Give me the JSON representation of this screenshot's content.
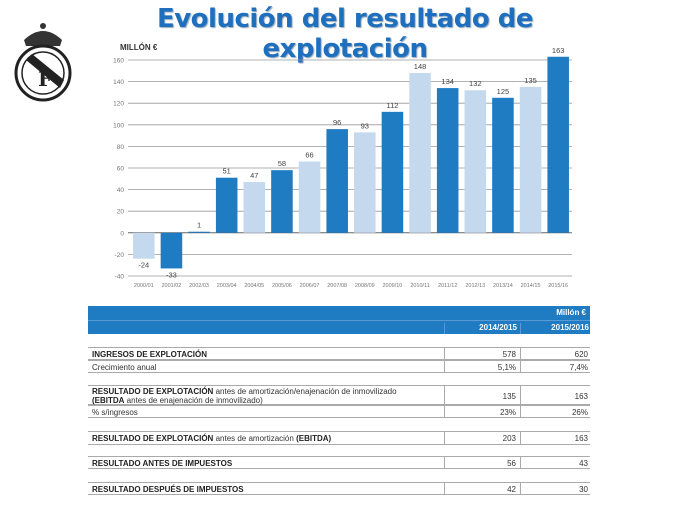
{
  "title": "Evolución del resultado de explotación",
  "logo": {
    "icon": "real-madrid-crest"
  },
  "colors": {
    "dark_bar": "#1f7bc2",
    "light_bar": "#c5d9ee",
    "header": "#1f7bc2",
    "title": "#1f6fbf"
  },
  "chart_data": {
    "type": "bar",
    "unit_label": "MILLÓN €",
    "categories": [
      "2000/01",
      "2001/02",
      "2002/03",
      "2003/04",
      "2004/05",
      "2005/06",
      "2006/07",
      "2007/08",
      "2008/09",
      "2009/10",
      "2010/11",
      "2011/12",
      "2012/13",
      "2013/14",
      "2014/15",
      "2015/16"
    ],
    "values": [
      -24,
      -33,
      1,
      51,
      47,
      58,
      66,
      96,
      93,
      112,
      148,
      134,
      132,
      125,
      135,
      163
    ],
    "bar_shades": [
      "light",
      "dark",
      "dark",
      "dark",
      "light",
      "dark",
      "light",
      "dark",
      "light",
      "dark",
      "light",
      "dark",
      "light",
      "dark",
      "light",
      "dark"
    ],
    "ylim": [
      -40,
      160
    ],
    "yticks": [
      -40,
      -20,
      0,
      20,
      40,
      60,
      80,
      100,
      120,
      140,
      160
    ],
    "grid": true
  },
  "table": {
    "unit": "Millón €",
    "columns": [
      "2014/2015",
      "2015/2016"
    ],
    "rows": [
      {
        "bold": "INGRESOS DE EXPLOTACIÓN",
        "rest": "",
        "v1": "578",
        "v2": "620"
      },
      {
        "bold": "",
        "rest": "Crecimiento anual",
        "v1": "5,1%",
        "v2": "7,4%"
      },
      {
        "bold": "RESULTADO DE EXPLOTACIÓN",
        "rest": " antes de amortización/enajenación de inmovilizado",
        "bold2": "(EBITDA",
        "rest2": " antes de enajenación de inmovilizado)",
        "v1": "135",
        "v2": "163"
      },
      {
        "bold": "",
        "rest": "% s/ingresos",
        "v1": "23%",
        "v2": "26%"
      },
      {
        "bold": "RESULTADO DE EXPLOTACIÓN",
        "rest": " antes de amortización ",
        "bold2": "(EBITDA)",
        "v1": "203",
        "v2": "163"
      },
      {
        "bold": "RESULTADO ANTES DE IMPUESTOS",
        "rest": "",
        "v1": "56",
        "v2": "43"
      },
      {
        "bold": "RESULTADO DESPUÉS DE IMPUESTOS",
        "rest": "",
        "v1": "42",
        "v2": "30"
      }
    ]
  }
}
